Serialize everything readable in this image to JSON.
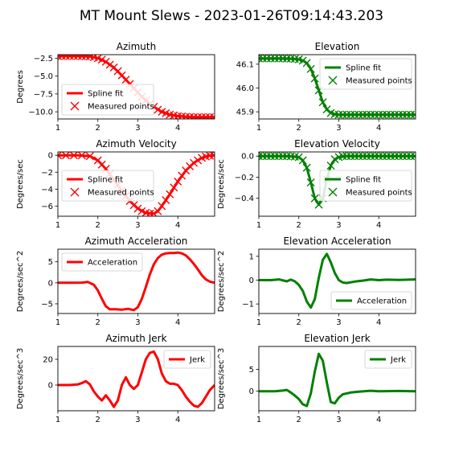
{
  "figure": {
    "title": "MT Mount Slews - 2023-01-26T09:14:43.203"
  },
  "colors": {
    "azimuth": "#ff0000",
    "elevation": "#008000"
  },
  "chart_data": [
    {
      "type": "line",
      "title": "Azimuth",
      "xlabel": "",
      "ylabel": "Degrees",
      "xlim": [
        1,
        4.92
      ],
      "ylim": [
        -11.0,
        -2.0
      ],
      "xticks": [
        1,
        2,
        3,
        4
      ],
      "yticks": [
        -2.5,
        -5.0,
        -7.5,
        -10.0
      ],
      "ytick_labels": [
        "−2.5",
        "−5.0",
        "−7.5",
        "−10.0"
      ],
      "legend": {
        "position": "lower-left",
        "entries": [
          "Spline fit",
          "Measured points"
        ]
      },
      "series": [
        {
          "name": "Spline fit",
          "style": "line",
          "color": "#ff0000",
          "x": [
            1.0,
            1.5,
            1.8,
            2.0,
            2.2,
            2.4,
            2.6,
            2.8,
            3.0,
            3.2,
            3.4,
            3.6,
            3.8,
            4.0,
            4.2,
            4.4,
            4.6,
            4.92
          ],
          "y": [
            -2.2,
            -2.2,
            -2.25,
            -2.5,
            -3.0,
            -3.8,
            -4.9,
            -6.1,
            -7.3,
            -8.4,
            -9.3,
            -10.0,
            -10.4,
            -10.6,
            -10.7,
            -10.75,
            -10.75,
            -10.75
          ]
        },
        {
          "name": "Measured points",
          "style": "marker-x",
          "color": "#ff0000",
          "x": [
            1.0,
            1.1,
            1.2,
            1.3,
            1.4,
            1.5,
            1.6,
            1.7,
            1.8,
            1.9,
            2.0,
            2.1,
            2.2,
            2.3,
            2.4,
            2.5,
            2.6,
            2.7,
            2.8,
            2.9,
            3.0,
            3.1,
            3.2,
            3.3,
            3.4,
            3.5,
            3.6,
            3.7,
            3.8,
            3.9,
            4.0,
            4.1,
            4.2,
            4.3,
            4.4,
            4.5,
            4.6,
            4.7,
            4.8,
            4.9
          ],
          "y": [
            -2.2,
            -2.2,
            -2.2,
            -2.2,
            -2.2,
            -2.2,
            -2.22,
            -2.23,
            -2.25,
            -2.35,
            -2.5,
            -2.7,
            -3.0,
            -3.4,
            -3.8,
            -4.3,
            -4.9,
            -5.5,
            -6.1,
            -6.7,
            -7.3,
            -7.9,
            -8.4,
            -8.9,
            -9.3,
            -9.7,
            -10.0,
            -10.2,
            -10.4,
            -10.5,
            -10.6,
            -10.65,
            -10.7,
            -10.72,
            -10.75,
            -10.75,
            -10.75,
            -10.75,
            -10.75,
            -10.75
          ]
        }
      ]
    },
    {
      "type": "line",
      "title": "Elevation",
      "xlabel": "",
      "ylabel": "",
      "xlim": [
        1,
        4.92
      ],
      "ylim": [
        45.87,
        46.14
      ],
      "xticks": [
        1,
        2,
        3,
        4
      ],
      "yticks": [
        46.1,
        46.0,
        45.9
      ],
      "ytick_labels": [
        "46.1",
        "46.0",
        "45.9"
      ],
      "legend": {
        "position": "upper-right",
        "entries": [
          "Spline fit",
          "Measured points"
        ]
      },
      "series": [
        {
          "name": "Spline fit",
          "style": "line",
          "color": "#008000",
          "x": [
            1.0,
            1.5,
            1.8,
            2.0,
            2.1,
            2.2,
            2.3,
            2.4,
            2.5,
            2.6,
            2.7,
            2.8,
            2.9,
            3.0,
            3.2,
            3.6,
            4.0,
            4.92
          ],
          "y": [
            46.124,
            46.124,
            46.123,
            46.12,
            46.115,
            46.105,
            46.08,
            46.04,
            45.99,
            45.94,
            45.91,
            45.895,
            45.89,
            45.888,
            45.888,
            45.888,
            45.888,
            45.888
          ]
        },
        {
          "name": "Measured points",
          "style": "marker-x",
          "color": "#008000",
          "x": [
            1.0,
            1.1,
            1.2,
            1.3,
            1.4,
            1.5,
            1.6,
            1.7,
            1.8,
            1.9,
            2.0,
            2.1,
            2.2,
            2.3,
            2.4,
            2.5,
            2.6,
            2.7,
            2.8,
            2.9,
            3.0,
            3.1,
            3.2,
            3.3,
            3.4,
            3.5,
            3.6,
            3.7,
            3.8,
            3.9,
            4.0,
            4.1,
            4.2,
            4.3,
            4.4,
            4.5,
            4.6,
            4.7,
            4.8,
            4.9
          ],
          "y": [
            46.124,
            46.124,
            46.124,
            46.124,
            46.124,
            46.124,
            46.124,
            46.123,
            46.123,
            46.122,
            46.12,
            46.115,
            46.105,
            46.08,
            46.04,
            45.99,
            45.94,
            45.91,
            45.895,
            45.89,
            45.888,
            45.888,
            45.888,
            45.888,
            45.888,
            45.888,
            45.888,
            45.888,
            45.888,
            45.888,
            45.888,
            45.888,
            45.888,
            45.888,
            45.888,
            45.888,
            45.888,
            45.888,
            45.888,
            45.888
          ]
        }
      ]
    },
    {
      "type": "line",
      "title": "Azimuth Velocity",
      "xlabel": "",
      "ylabel": "Degrees/sec",
      "xlim": [
        1,
        4.92
      ],
      "ylim": [
        -7.2,
        0.4
      ],
      "xticks": [
        1,
        2,
        3,
        4
      ],
      "yticks": [
        0,
        -2,
        -4,
        -6
      ],
      "ytick_labels": [
        "0",
        "−2",
        "−4",
        "−6"
      ],
      "legend": {
        "position": "center-left",
        "entries": [
          "Spline fit",
          "Measured points"
        ]
      },
      "series": [
        {
          "name": "Spline fit",
          "style": "line",
          "color": "#ff0000",
          "x": [
            1.0,
            1.5,
            1.8,
            2.0,
            2.2,
            2.4,
            2.6,
            2.8,
            3.0,
            3.2,
            3.4,
            3.5,
            3.6,
            3.8,
            4.0,
            4.2,
            4.4,
            4.6,
            4.8,
            4.92
          ],
          "y": [
            0,
            0,
            -0.1,
            -0.6,
            -1.6,
            -2.9,
            -4.2,
            -5.4,
            -6.3,
            -6.8,
            -6.9,
            -6.6,
            -6.0,
            -4.6,
            -3.1,
            -1.8,
            -0.9,
            -0.3,
            -0.05,
            0
          ]
        },
        {
          "name": "Measured points",
          "style": "marker-x",
          "color": "#ff0000",
          "x": [
            1.0,
            1.2,
            1.4,
            1.6,
            1.8,
            2.0,
            2.1,
            2.2,
            2.3,
            2.4,
            2.5,
            2.6,
            2.7,
            2.8,
            2.9,
            3.0,
            3.1,
            3.2,
            3.3,
            3.4,
            3.5,
            3.6,
            3.7,
            3.8,
            3.9,
            4.0,
            4.1,
            4.2,
            4.3,
            4.4,
            4.5,
            4.6,
            4.7,
            4.8,
            4.9
          ],
          "y": [
            0,
            0,
            0,
            0,
            -0.1,
            -0.6,
            -1.1,
            -1.6,
            -2.2,
            -2.9,
            -3.5,
            -4.2,
            -4.8,
            -5.4,
            -5.9,
            -6.3,
            -6.6,
            -6.8,
            -6.9,
            -6.9,
            -6.6,
            -6.0,
            -5.3,
            -4.6,
            -3.8,
            -3.1,
            -2.4,
            -1.8,
            -1.3,
            -0.9,
            -0.6,
            -0.3,
            -0.15,
            -0.05,
            0
          ]
        }
      ]
    },
    {
      "type": "line",
      "title": "Elevation Velocity",
      "xlabel": "",
      "ylabel": "Degrees/sec",
      "xlim": [
        1,
        4.92
      ],
      "ylim": [
        -0.57,
        0.04
      ],
      "xticks": [
        1,
        2,
        3,
        4
      ],
      "yticks": [
        0.0,
        -0.2,
        -0.4
      ],
      "ytick_labels": [
        "0.0",
        "−0.2",
        "−0.4"
      ],
      "legend": {
        "position": "center-right",
        "entries": [
          "Spline fit",
          "Measured points"
        ]
      },
      "series": [
        {
          "name": "Spline fit",
          "style": "line",
          "color": "#008000",
          "x": [
            1.0,
            1.5,
            1.8,
            2.0,
            2.1,
            2.2,
            2.3,
            2.4,
            2.5,
            2.6,
            2.7,
            2.8,
            2.9,
            3.0,
            3.2,
            3.6,
            4.0,
            4.92
          ],
          "y": [
            0,
            0,
            -0.002,
            -0.01,
            -0.04,
            -0.11,
            -0.25,
            -0.4,
            -0.46,
            -0.4,
            -0.22,
            -0.09,
            -0.03,
            -0.01,
            0,
            0,
            0,
            0
          ]
        },
        {
          "name": "Measured points",
          "style": "marker-x",
          "color": "#008000",
          "x": [
            1.0,
            1.1,
            1.2,
            1.3,
            1.4,
            1.5,
            1.6,
            1.7,
            1.8,
            1.9,
            2.0,
            2.1,
            2.2,
            2.3,
            2.4,
            2.5,
            2.6,
            2.7,
            2.8,
            2.9,
            3.0,
            3.1,
            3.2,
            3.3,
            3.4,
            3.5,
            3.6,
            3.7,
            3.8,
            3.9,
            4.0,
            4.1,
            4.2,
            4.3,
            4.4,
            4.5,
            4.6,
            4.7,
            4.8,
            4.9
          ],
          "y": [
            0,
            0,
            0,
            0,
            0,
            0,
            0,
            0,
            -0.002,
            -0.005,
            -0.01,
            -0.04,
            -0.11,
            -0.25,
            -0.4,
            -0.46,
            -0.4,
            -0.22,
            -0.09,
            -0.03,
            -0.01,
            0,
            0,
            0,
            0,
            0,
            0,
            0,
            0,
            0,
            0,
            0,
            0,
            0,
            0,
            0,
            0,
            0,
            0,
            0
          ]
        }
      ]
    },
    {
      "type": "line",
      "title": "Azimuth Acceleration",
      "xlabel": "",
      "ylabel": "Degrees/sec^2",
      "xlim": [
        1,
        4.92
      ],
      "ylim": [
        -7.3,
        8.0
      ],
      "xticks": [
        1,
        2,
        3,
        4
      ],
      "yticks": [
        5,
        0,
        -5
      ],
      "ytick_labels": [
        "5",
        "0",
        "−5"
      ],
      "legend": {
        "position": "upper-left",
        "entries": [
          "Acceleration"
        ]
      },
      "series": [
        {
          "name": "Acceleration",
          "style": "line",
          "color": "#ff0000",
          "x": [
            1.0,
            1.3,
            1.6,
            1.75,
            1.9,
            2.0,
            2.1,
            2.2,
            2.3,
            2.45,
            2.6,
            2.75,
            2.9,
            3.0,
            3.1,
            3.2,
            3.3,
            3.4,
            3.5,
            3.6,
            3.7,
            3.8,
            3.9,
            4.0,
            4.1,
            4.2,
            4.3,
            4.4,
            4.5,
            4.6,
            4.7,
            4.8,
            4.92
          ],
          "y": [
            0,
            0,
            0.05,
            0.2,
            -0.5,
            -1.8,
            -3.8,
            -5.6,
            -6.3,
            -6.3,
            -6.4,
            -6.2,
            -6.5,
            -5.8,
            -3.8,
            -1.0,
            2.0,
            4.4,
            5.9,
            6.7,
            7.0,
            7.1,
            7.1,
            7.2,
            7.0,
            6.5,
            5.6,
            4.5,
            3.2,
            1.8,
            0.8,
            0.3,
            0
          ]
        }
      ]
    },
    {
      "type": "line",
      "title": "Elevation Acceleration",
      "xlabel": "",
      "ylabel": "Degrees/sec^2",
      "xlim": [
        1,
        4.92
      ],
      "ylim": [
        -1.4,
        1.3
      ],
      "xticks": [
        1,
        2,
        3,
        4
      ],
      "yticks": [
        1,
        0,
        -1
      ],
      "ytick_labels": [
        "1",
        "0",
        "−1"
      ],
      "legend": {
        "position": "lower-right",
        "entries": [
          "Acceleration"
        ]
      },
      "series": [
        {
          "name": "Acceleration",
          "style": "line",
          "color": "#008000",
          "x": [
            1.0,
            1.3,
            1.5,
            1.7,
            1.8,
            1.9,
            2.0,
            2.1,
            2.2,
            2.3,
            2.4,
            2.5,
            2.6,
            2.7,
            2.8,
            2.9,
            3.0,
            3.1,
            3.2,
            3.4,
            3.6,
            3.8,
            4.0,
            4.2,
            4.5,
            4.92
          ],
          "y": [
            0,
            0,
            0.03,
            -0.05,
            0.02,
            -0.05,
            -0.2,
            -0.45,
            -0.9,
            -1.15,
            -0.8,
            0.1,
            0.85,
            1.1,
            0.75,
            0.3,
            0.0,
            -0.1,
            -0.12,
            -0.06,
            -0.02,
            0.03,
            0.0,
            0.02,
            0.01,
            0.03
          ]
        }
      ]
    },
    {
      "type": "line",
      "title": "Azimuth Jerk",
      "xlabel": "",
      "ylabel": "Degrees/sec^3",
      "xlim": [
        1,
        4.92
      ],
      "ylim": [
        -20,
        30
      ],
      "xticks": [
        1,
        2,
        3,
        4
      ],
      "yticks": [
        20,
        0
      ],
      "ytick_labels": [
        "20",
        "0"
      ],
      "legend": {
        "position": "upper-right",
        "entries": [
          "Jerk"
        ]
      },
      "series": [
        {
          "name": "Jerk",
          "style": "line",
          "color": "#ff0000",
          "x": [
            1.0,
            1.3,
            1.5,
            1.6,
            1.7,
            1.8,
            1.9,
            2.0,
            2.1,
            2.2,
            2.3,
            2.4,
            2.5,
            2.6,
            2.7,
            2.8,
            2.9,
            3.0,
            3.1,
            3.2,
            3.3,
            3.4,
            3.5,
            3.6,
            3.7,
            3.8,
            3.9,
            4.0,
            4.1,
            4.2,
            4.3,
            4.4,
            4.5,
            4.6,
            4.7,
            4.8,
            4.92
          ],
          "y": [
            0,
            0,
            0.5,
            1.5,
            3.0,
            0.5,
            -5.0,
            -9.0,
            -12.0,
            -8.0,
            -12.0,
            -17.0,
            -12.0,
            0.0,
            6.0,
            0.0,
            -3.0,
            0.0,
            10.0,
            20.0,
            25.0,
            26.0,
            20.0,
            9.0,
            3.0,
            1.0,
            1.0,
            0.0,
            -4.0,
            -9.0,
            -13.0,
            -16.0,
            -17.0,
            -14.0,
            -9.0,
            -4.0,
            0.0
          ]
        }
      ]
    },
    {
      "type": "line",
      "title": "Elevation Jerk",
      "xlabel": "",
      "ylabel": "Degrees/sec^3",
      "xlim": [
        1,
        4.92
      ],
      "ylim": [
        -4.5,
        10.3
      ],
      "xticks": [
        1,
        2,
        3,
        4
      ],
      "yticks": [
        5,
        0
      ],
      "ytick_labels": [
        "5",
        "0"
      ],
      "legend": {
        "position": "upper-right",
        "entries": [
          "Jerk"
        ]
      },
      "series": [
        {
          "name": "Jerk",
          "style": "line",
          "color": "#008000",
          "x": [
            1.0,
            1.4,
            1.6,
            1.7,
            1.8,
            1.9,
            2.0,
            2.1,
            2.2,
            2.3,
            2.4,
            2.5,
            2.6,
            2.7,
            2.8,
            2.9,
            3.0,
            3.1,
            3.3,
            3.5,
            3.8,
            4.0,
            4.5,
            4.92
          ],
          "y": [
            0,
            0,
            0.15,
            0.3,
            -0.3,
            -1.0,
            -1.8,
            -3.0,
            -3.4,
            -0.5,
            4.5,
            8.6,
            7.0,
            2.0,
            -2.5,
            -2.8,
            -1.5,
            -0.7,
            -0.3,
            -0.1,
            0.1,
            0.0,
            0.05,
            0.0
          ]
        }
      ]
    }
  ]
}
